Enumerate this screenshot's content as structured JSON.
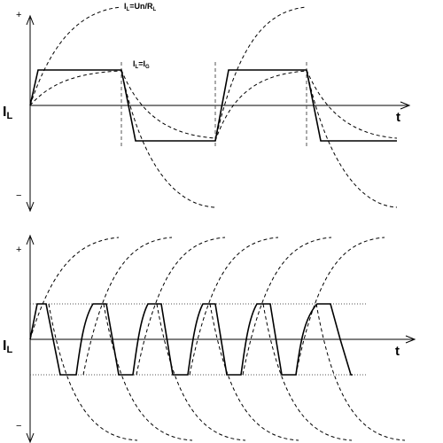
{
  "top_diagram": {
    "plus_label": "+",
    "minus_label": "−",
    "axis_label_main": "I",
    "axis_label_sub": "L",
    "time_label": "t",
    "annotation_limit_main": "I",
    "annotation_limit_sub": "L",
    "annotation_limit_rest": "=Un/R",
    "annotation_limit_sub2": "L",
    "annotation_clamp_main": "I",
    "annotation_clamp_sub": "L",
    "annotation_clamp_rest": "=I",
    "annotation_clamp_sub2": "G"
  },
  "bottom_diagram": {
    "plus_label": "+",
    "minus_label": "−",
    "axis_label_main": "I",
    "axis_label_sub": "L",
    "time_label": "t"
  },
  "colors": {
    "line": "#000000",
    "guide": "#555555"
  }
}
